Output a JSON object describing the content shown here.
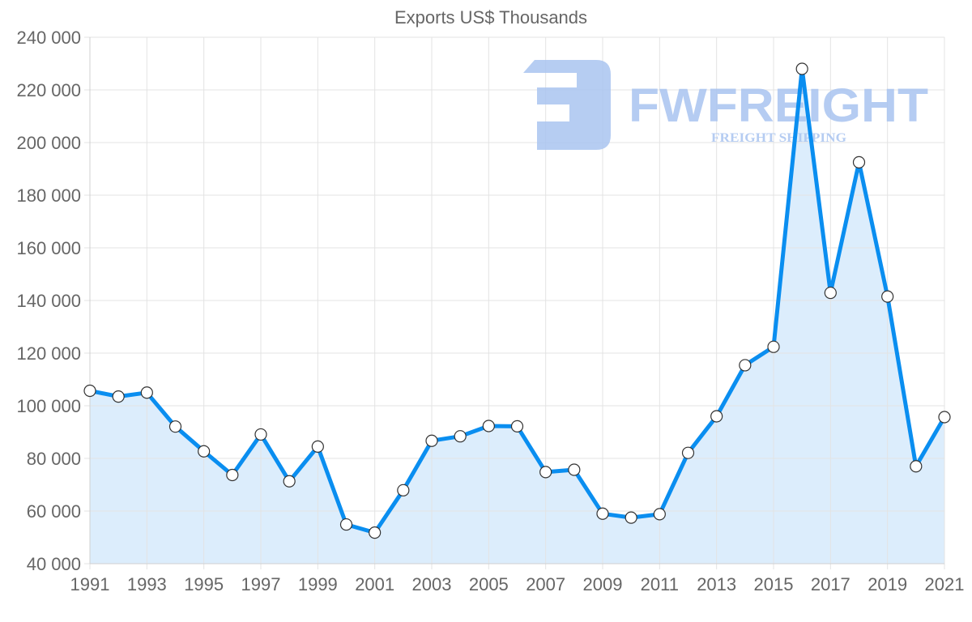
{
  "chart_data": {
    "type": "area",
    "title": "Exports US$ Thousands",
    "xlabel": "",
    "ylabel": "",
    "x": [
      1991,
      1992,
      1993,
      1994,
      1995,
      1996,
      1997,
      1998,
      1999,
      2000,
      2001,
      2002,
      2003,
      2004,
      2005,
      2006,
      2007,
      2008,
      2009,
      2010,
      2011,
      2012,
      2013,
      2014,
      2015,
      2016,
      2017,
      2018,
      2019,
      2020,
      2021
    ],
    "series": [
      {
        "name": "Exports US$ Thousands",
        "values": [
          105700,
          103500,
          105000,
          92100,
          82700,
          73700,
          89100,
          71300,
          84500,
          54900,
          51800,
          67900,
          86700,
          88400,
          92300,
          92200,
          74800,
          75700,
          59000,
          57500,
          58800,
          82100,
          96000,
          115400,
          122400,
          228000,
          142900,
          192500,
          141500,
          77000,
          95700
        ]
      }
    ],
    "xticks": [
      "1991",
      "1993",
      "1995",
      "1997",
      "1999",
      "2001",
      "2003",
      "2005",
      "2007",
      "2009",
      "2011",
      "2013",
      "2015",
      "2017",
      "2019",
      "2021"
    ],
    "yticks": [
      "240 000",
      "220 000",
      "200 000",
      "180 000",
      "160 000",
      "140 000",
      "120 000",
      "100 000",
      "80 000",
      "60 000",
      "40 000"
    ],
    "ylim": [
      40000,
      240000
    ],
    "xlim": [
      1991,
      2021
    ],
    "grid": true,
    "legend": "none",
    "colors": {
      "line": "#0a8ef0",
      "fill": "#d8ebfc",
      "marker_fill": "#ffffff",
      "marker_stroke": "#333333",
      "grid": "#e3e3e3",
      "axis_text": "#666666"
    }
  },
  "watermark": {
    "brand": "FWFREIGHT",
    "tagline": "FREIGHT SHIPPING",
    "color": "#a9c4f0"
  }
}
